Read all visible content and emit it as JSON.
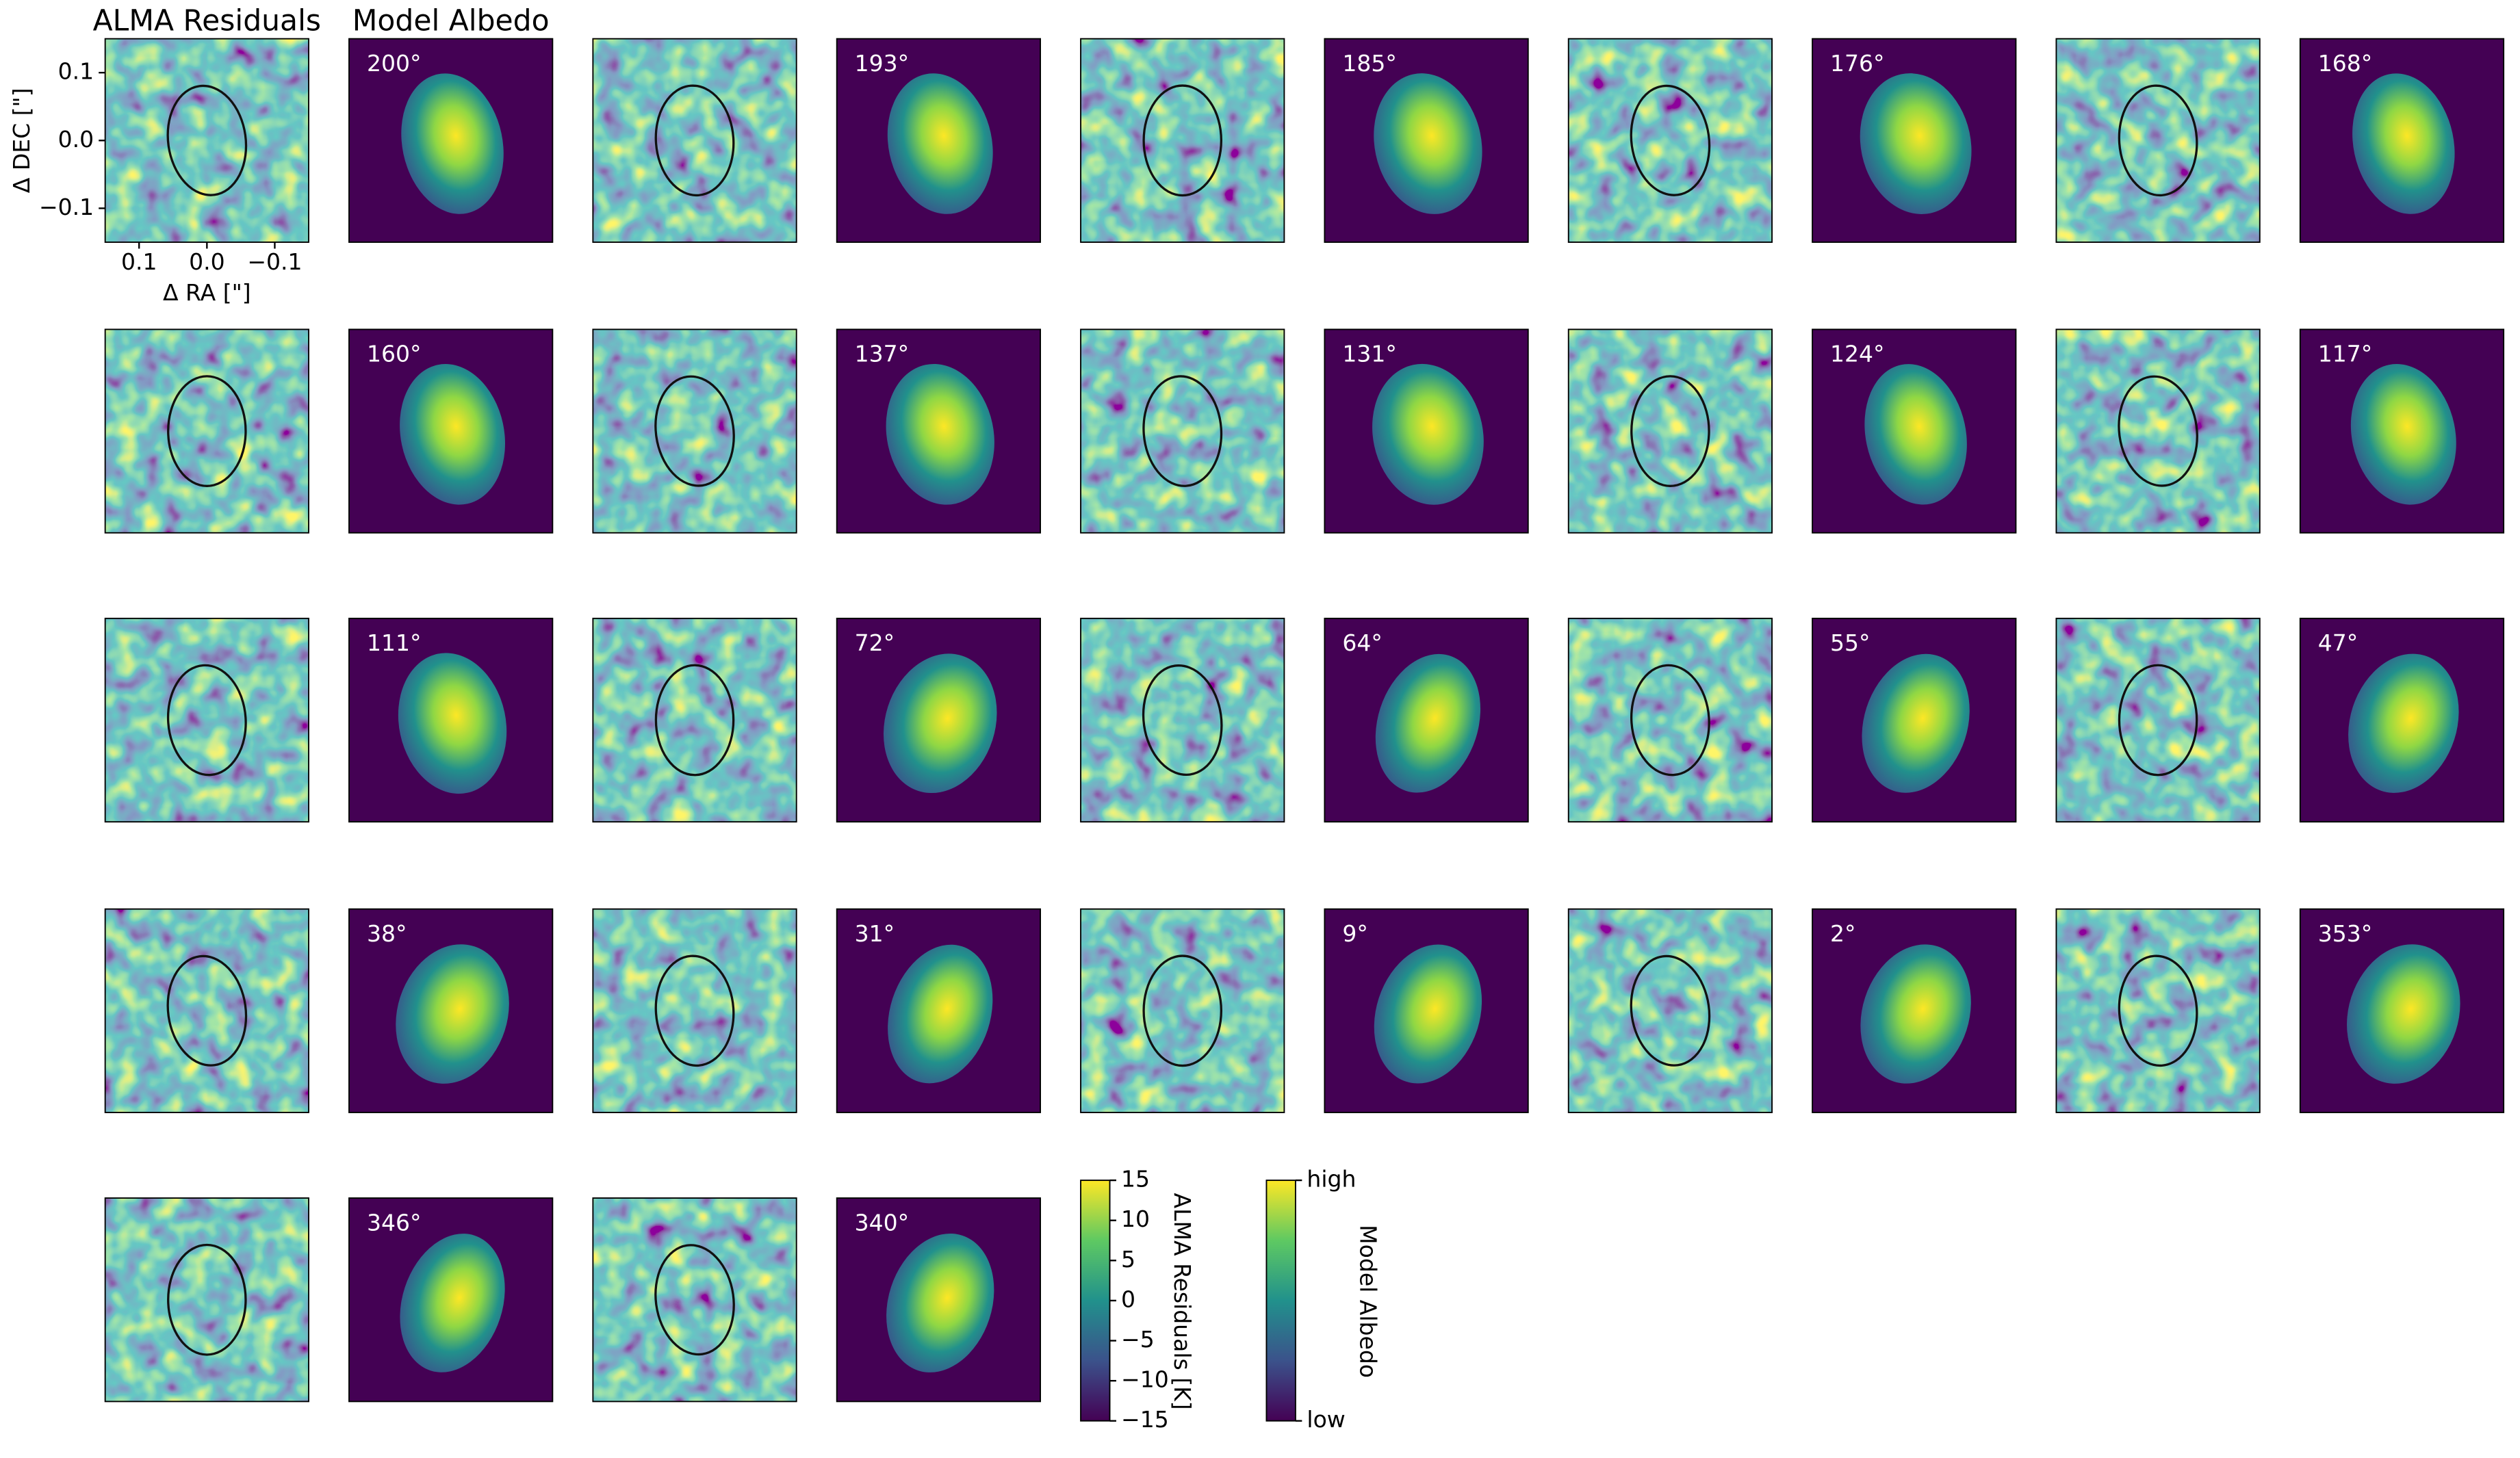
{
  "chart_data": {
    "type": "image_grid",
    "column_titles": [
      "ALMA Residuals",
      "Model Albedo"
    ],
    "angles": [
      "200°",
      "193°",
      "185°",
      "176°",
      "168°",
      "160°",
      "137°",
      "131°",
      "124°",
      "117°",
      "111°",
      "72°",
      "64°",
      "55°",
      "47°",
      "38°",
      "31°",
      "9°",
      "2°",
      "353°",
      "346°",
      "340°"
    ],
    "x_label": "Δ RA [\"]",
    "y_label": "Δ DEC [\"]",
    "xlim": [
      0.15,
      -0.15
    ],
    "xticks": [
      0.1,
      {
        "value": 0,
        "label": "0.0"
      },
      {
        "value": -0.1,
        "label": "−0.1"
      }
    ],
    "ylim": [
      -0.15,
      0.15
    ],
    "yticks": [
      {
        "value": -0.1,
        "label": "−0.1"
      },
      {
        "value": 0,
        "label": "0.0"
      },
      0.1
    ],
    "colorbar": {
      "label": "ALMA Residuals [K]",
      "lim": [
        -15,
        15
      ],
      "ticks": [
        {
          "value": -15,
          "label": "−15"
        },
        {
          "value": -10,
          "label": "−10"
        },
        {
          "value": -5,
          "label": "−5"
        },
        0,
        5,
        10,
        15
      ]
    },
    "albedo_colorbar": {
      "label": "Model Albedo",
      "high": "high",
      "low": "low"
    }
  }
}
